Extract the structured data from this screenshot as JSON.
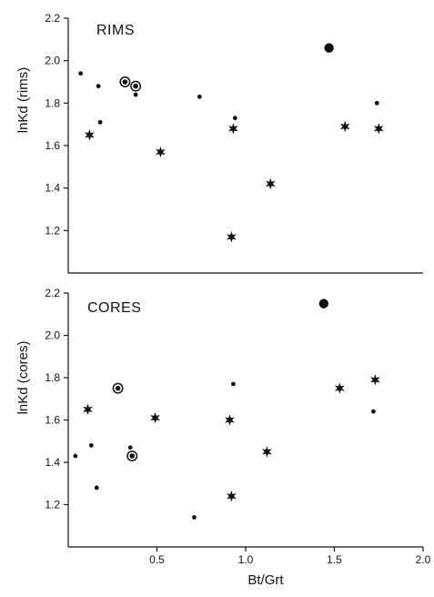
{
  "chart_data": [
    {
      "type": "scatter",
      "title": "RIMS",
      "xlabel": "",
      "ylabel": "lnKd (rims)",
      "xlim": [
        0,
        2.0
      ],
      "ylim": [
        1.0,
        2.2
      ],
      "yticks": [
        "2.2",
        "2.0",
        "1.8",
        "1.6",
        "1.4",
        "1.2"
      ],
      "xticks": [],
      "grid": false,
      "series": [
        {
          "marker": "small-dot",
          "points": [
            [
              0.07,
              1.94
            ],
            [
              0.17,
              1.88
            ],
            [
              0.18,
              1.71
            ],
            [
              0.38,
              1.84
            ],
            [
              0.74,
              1.83
            ],
            [
              0.94,
              1.73
            ],
            [
              1.74,
              1.8
            ]
          ]
        },
        {
          "marker": "star",
          "points": [
            [
              0.12,
              1.65
            ],
            [
              0.52,
              1.57
            ],
            [
              0.93,
              1.68
            ],
            [
              0.92,
              1.17
            ],
            [
              1.14,
              1.42
            ],
            [
              1.56,
              1.69
            ],
            [
              1.75,
              1.68
            ]
          ]
        },
        {
          "marker": "ringed-dot",
          "points": [
            [
              0.32,
              1.9
            ],
            [
              0.38,
              1.88
            ]
          ]
        },
        {
          "marker": "large-dot",
          "points": [
            [
              1.47,
              2.06
            ]
          ]
        }
      ]
    },
    {
      "type": "scatter",
      "title": "CORES",
      "xlabel": "Bt/Grt",
      "ylabel": "lnKd  (cores)",
      "xlim": [
        0,
        2.0
      ],
      "ylim": [
        1.0,
        2.2
      ],
      "yticks": [
        "2.2",
        "2.0",
        "1.8",
        "1.6",
        "1.4",
        "1.2"
      ],
      "xticks": [
        "0.5",
        "1.0",
        "1.5",
        "2.0"
      ],
      "grid": false,
      "series": [
        {
          "marker": "small-dot",
          "points": [
            [
              0.04,
              1.43
            ],
            [
              0.13,
              1.48
            ],
            [
              0.16,
              1.28
            ],
            [
              0.35,
              1.47
            ],
            [
              0.71,
              1.14
            ],
            [
              0.93,
              1.77
            ],
            [
              1.72,
              1.64
            ]
          ]
        },
        {
          "marker": "star",
          "points": [
            [
              0.11,
              1.65
            ],
            [
              0.49,
              1.61
            ],
            [
              0.91,
              1.6
            ],
            [
              0.92,
              1.24
            ],
            [
              1.12,
              1.45
            ],
            [
              1.53,
              1.75
            ],
            [
              1.73,
              1.79
            ]
          ]
        },
        {
          "marker": "ringed-dot",
          "points": [
            [
              0.28,
              1.75
            ],
            [
              0.36,
              1.43
            ]
          ]
        },
        {
          "marker": "large-dot",
          "points": [
            [
              1.44,
              2.15
            ]
          ]
        }
      ]
    }
  ]
}
